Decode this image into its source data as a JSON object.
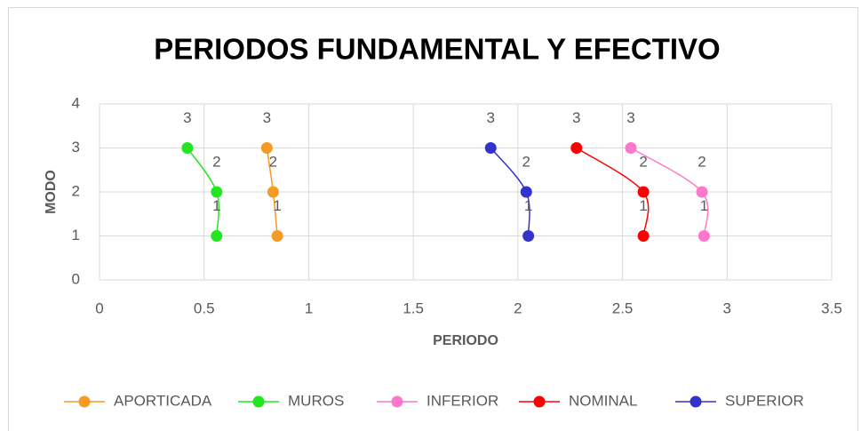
{
  "chart_data": {
    "type": "scatter",
    "title": "PERIODOS FUNDAMENTAL Y EFECTIVO",
    "x_label": "PERIODO",
    "y_label": "MODO",
    "xlim": [
      0,
      3.5
    ],
    "xticks": [
      0,
      0.5,
      1,
      1.5,
      2,
      2.5,
      3,
      3.5
    ],
    "ylim": [
      0,
      4
    ],
    "yticks": [
      0,
      1,
      2,
      3,
      4
    ],
    "grid": true,
    "legend": "bottom",
    "series": [
      {
        "name": "APORTICADA",
        "color": "#f59a23",
        "x": [
          0.85,
          0.83,
          0.8
        ],
        "values": [
          1,
          2,
          3
        ]
      },
      {
        "name": "MUROS",
        "color": "#22e622",
        "x": [
          0.56,
          0.56,
          0.42
        ],
        "values": [
          1,
          2,
          3
        ]
      },
      {
        "name": "INFERIOR",
        "color": "#ff77cc",
        "x": [
          2.89,
          2.88,
          2.54
        ],
        "values": [
          1,
          2,
          3
        ]
      },
      {
        "name": "NOMINAL",
        "color": "#ff0000",
        "x": [
          2.6,
          2.6,
          2.28
        ],
        "values": [
          1,
          2,
          3
        ]
      },
      {
        "name": "SUPERIOR",
        "color": "#3333cc",
        "x": [
          2.05,
          2.04,
          1.87
        ],
        "values": [
          1,
          2,
          3
        ]
      }
    ]
  }
}
